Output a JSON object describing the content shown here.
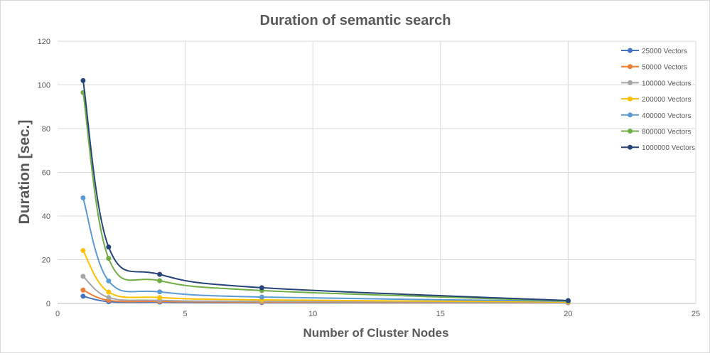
{
  "chart_data": {
    "type": "scatter",
    "title": "Duration of semantic search",
    "xlabel": "Number of Cluster Nodes",
    "ylabel": "Duration [sec.]",
    "xlim": [
      0,
      25
    ],
    "ylim": [
      0,
      120
    ],
    "x_ticks": [
      "0",
      "5",
      "10",
      "15",
      "20",
      "25"
    ],
    "y_ticks": [
      "0",
      "20",
      "40",
      "60",
      "80",
      "100",
      "120"
    ],
    "x": [
      1,
      2,
      4,
      8,
      20
    ],
    "smooth_lines": true,
    "grid": true,
    "legend_position": "right",
    "series": [
      {
        "name": "25000 Vectors",
        "color": "#4472c4",
        "values": [
          3.3,
          0.8,
          0.6,
          0.4,
          0.3
        ]
      },
      {
        "name": "50000 Vectors",
        "color": "#ed7d31",
        "values": [
          6.1,
          1.4,
          0.9,
          0.6,
          0.4
        ]
      },
      {
        "name": "100000 Vectors",
        "color": "#a5a5a5",
        "values": [
          12.4,
          2.7,
          1.4,
          0.9,
          0.5
        ]
      },
      {
        "name": "200000 Vectors",
        "color": "#ffc000",
        "values": [
          24.2,
          5.2,
          2.7,
          1.6,
          0.7
        ]
      },
      {
        "name": "400000 Vectors",
        "color": "#5b9bd5",
        "values": [
          48.3,
          10.3,
          5.3,
          2.9,
          1.0
        ]
      },
      {
        "name": "800000 Vectors",
        "color": "#70ad47",
        "values": [
          96.5,
          20.6,
          10.4,
          5.9,
          1.1
        ]
      },
      {
        "name": "1000000 Vectors",
        "color": "#264478",
        "values": [
          102.0,
          25.8,
          13.3,
          7.2,
          1.3
        ]
      }
    ]
  }
}
